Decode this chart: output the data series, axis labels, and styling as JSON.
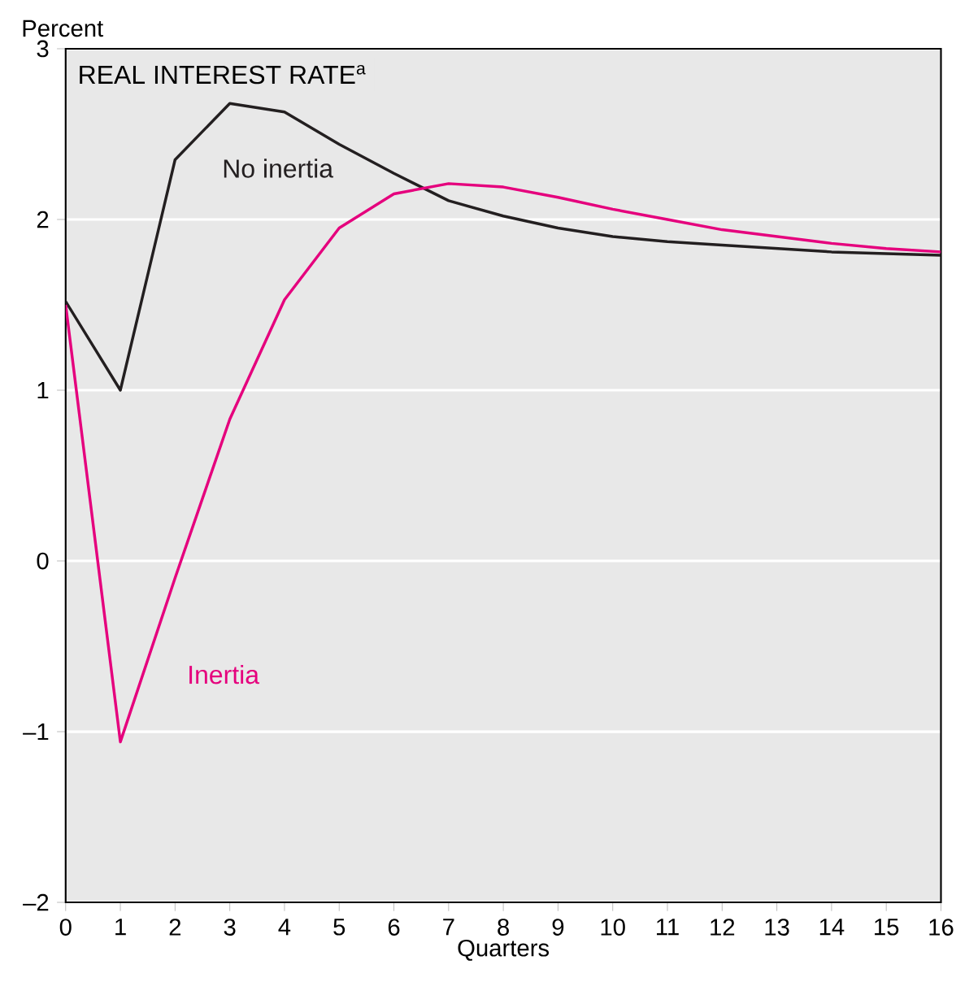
{
  "chart_data": {
    "type": "line",
    "title": "REAL INTEREST RATE$^{a}$",
    "ylabel": "Percent",
    "xlabel": "Quarters",
    "x": [
      0,
      1,
      2,
      3,
      4,
      5,
      6,
      7,
      8,
      9,
      10,
      11,
      12,
      13,
      14,
      15,
      16
    ],
    "series": [
      {
        "name": "No inertia",
        "color": "#231f20",
        "values": [
          1.52,
          1.0,
          2.35,
          2.68,
          2.63,
          2.44,
          2.27,
          2.11,
          2.02,
          1.95,
          1.9,
          1.87,
          1.85,
          1.83,
          1.81,
          1.8,
          1.79
        ]
      },
      {
        "name": "Inertia",
        "color": "#e5007d",
        "values": [
          1.5,
          -1.06,
          -0.1,
          0.83,
          1.53,
          1.95,
          2.15,
          2.21,
          2.19,
          2.13,
          2.06,
          2.0,
          1.94,
          1.9,
          1.86,
          1.83,
          1.81
        ]
      }
    ],
    "xlim": [
      0,
      16
    ],
    "xticks": [
      0,
      1,
      2,
      3,
      4,
      5,
      6,
      7,
      8,
      9,
      10,
      11,
      12,
      13,
      14,
      15,
      16
    ],
    "ylim": [
      -2,
      3
    ],
    "yticks": [
      {
        "value": -2,
        "label": "–2"
      },
      {
        "value": -1,
        "label": "–1"
      },
      0,
      1,
      2,
      3
    ],
    "grid": "y",
    "marker": "none",
    "line_style": "solid"
  }
}
